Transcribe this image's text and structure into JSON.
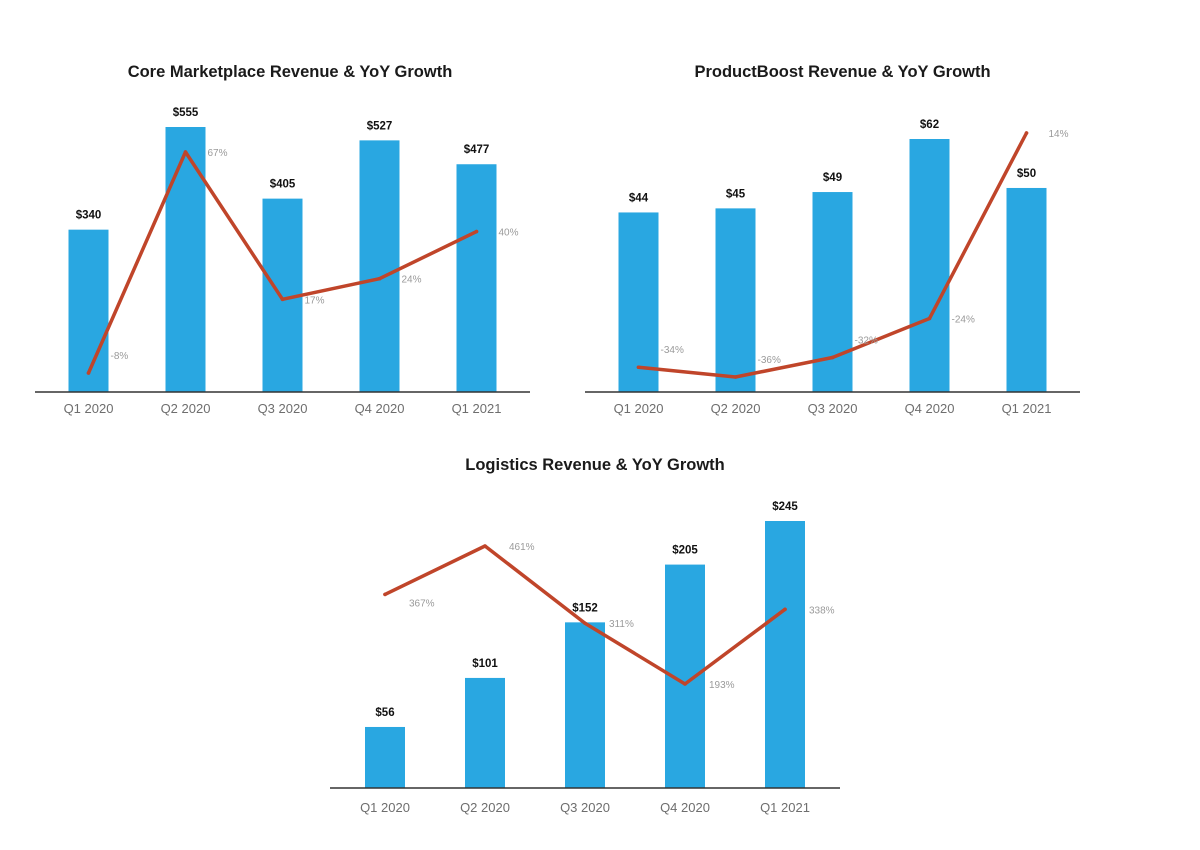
{
  "chart_data": [
    {
      "type": "bar",
      "title": "Core Marketplace Revenue & YoY Growth",
      "categories": [
        "Q1 2020",
        "Q2 2020",
        "Q3 2020",
        "Q4 2020",
        "Q1 2021"
      ],
      "series": [
        {
          "values": [
            340,
            555,
            405,
            527,
            477
          ],
          "labels": [
            "$340",
            "$555",
            "$405",
            "$527",
            "$477"
          ]
        },
        {
          "type": "line",
          "values": [
            -8,
            67,
            17,
            24,
            40
          ],
          "labels": [
            "-8%",
            "67%",
            "17%",
            "24%",
            "40%"
          ]
        }
      ],
      "colors": {
        "bar": "#29a7e1",
        "line": "#c0452a"
      }
    },
    {
      "type": "bar",
      "title": "ProductBoost Revenue & YoY Growth",
      "categories": [
        "Q1 2020",
        "Q2 2020",
        "Q3 2020",
        "Q4 2020",
        "Q1 2021"
      ],
      "series": [
        {
          "values": [
            44,
            45,
            49,
            62,
            50
          ],
          "labels": [
            "$44",
            "$45",
            "$49",
            "$62",
            "$50"
          ]
        },
        {
          "type": "line",
          "values": [
            -34,
            -36,
            -32,
            -24,
            14
          ],
          "labels": [
            "-34%",
            "-36%",
            "-32%",
            "-24%",
            "14%"
          ]
        }
      ],
      "colors": {
        "bar": "#29a7e1",
        "line": "#c0452a"
      }
    },
    {
      "type": "bar",
      "title": "Logistics Revenue & YoY Growth",
      "categories": [
        "Q1 2020",
        "Q2 2020",
        "Q3 2020",
        "Q4 2020",
        "Q1 2021"
      ],
      "series": [
        {
          "values": [
            56,
            101,
            152,
            205,
            245
          ],
          "labels": [
            "$56",
            "$101",
            "$152",
            "$205",
            "$245"
          ]
        },
        {
          "type": "line",
          "values": [
            367,
            461,
            311,
            193,
            338
          ],
          "labels": [
            "367%",
            "461%",
            "311%",
            "193%",
            "338%"
          ]
        }
      ],
      "colors": {
        "bar": "#29a7e1",
        "line": "#c0452a"
      }
    }
  ]
}
